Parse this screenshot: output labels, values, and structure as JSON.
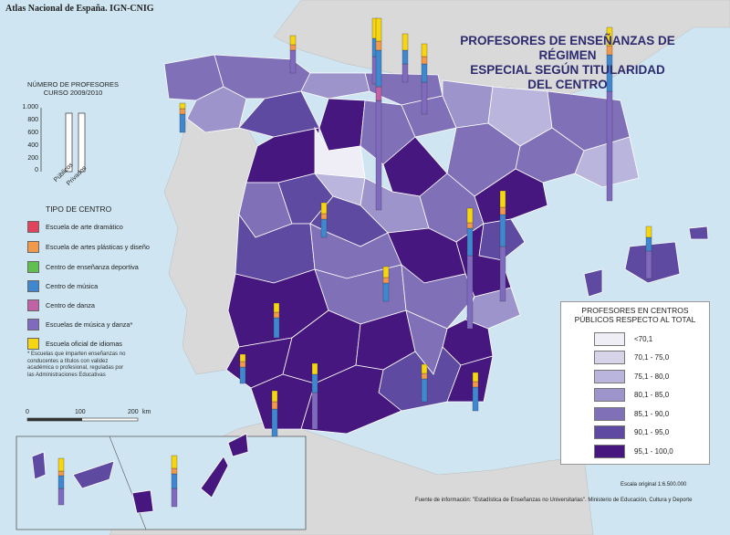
{
  "credit": "Atlas Nacional de España. IGN-CNIG",
  "title_lines": [
    "PROFESORES DE ENSEÑANZAS DE RÉGIMEN",
    "ESPECIAL SEGÚN TITULARIDAD",
    "DEL CENTRO"
  ],
  "bar_panel": {
    "title_line1": "NÚMERO DE PROFESORES",
    "title_line2": "CURSO 2009/2010",
    "ticks": [
      "1.000",
      "800",
      "600",
      "400",
      "200",
      "0"
    ],
    "label_publicos": "Públicos",
    "label_privados": "Privados"
  },
  "center_legend": {
    "title": "TIPO DE CENTRO",
    "items": [
      {
        "label": "Escuela de arte dramático",
        "color": "#e0435a"
      },
      {
        "label": "Escuela de artes plásticas y diseño",
        "color": "#f39a4a"
      },
      {
        "label": "Centro de enseñanza deportiva",
        "color": "#5fbf4f"
      },
      {
        "label": "Centro de música",
        "color": "#3f87cf"
      },
      {
        "label": "Centro de danza",
        "color": "#c161a6"
      },
      {
        "label": "Escuelas de música y danza*",
        "color": "#7f6ac0"
      },
      {
        "label": "Escuela oficial de idiomas",
        "color": "#f6d512"
      }
    ],
    "footnote_lines": [
      "* Escuelas que imparten enseñanzas no",
      "conducentes a títulos con validez",
      "académica o profesional, reguladas por",
      "las Administraciones Educativas"
    ]
  },
  "scale_bar": {
    "labels": [
      "0",
      "100",
      "200"
    ],
    "unit": "km"
  },
  "range_legend": {
    "title_line1": "PROFESORES EN CENTROS",
    "title_line2": "PÚBLICOS RESPECTO AL TOTAL",
    "items": [
      {
        "label": "<70,1",
        "color": "#efedf6"
      },
      {
        "label": "70,1 - 75,0",
        "color": "#d7d4ea"
      },
      {
        "label": "75,1 - 80,0",
        "color": "#bab5dc"
      },
      {
        "label": "80,1 - 85,0",
        "color": "#9d94cb"
      },
      {
        "label": "85,1 - 90,0",
        "color": "#7f70b8"
      },
      {
        "label": "90,1 - 95,0",
        "color": "#5f4aa2"
      },
      {
        "label": "95,1 - 100,0",
        "color": "#45177f"
      }
    ]
  },
  "scale_text": "Escala original 1:6.500.000",
  "source_text": "Fuente de información: \"Estadística de Enseñanzas no Universitarias\". Ministerio de Educación, Cultura y Deporte",
  "colors": {
    "sea": "#cfe6f2",
    "neighbor_land": "#d9d9d9",
    "border": "#ffffff"
  }
}
